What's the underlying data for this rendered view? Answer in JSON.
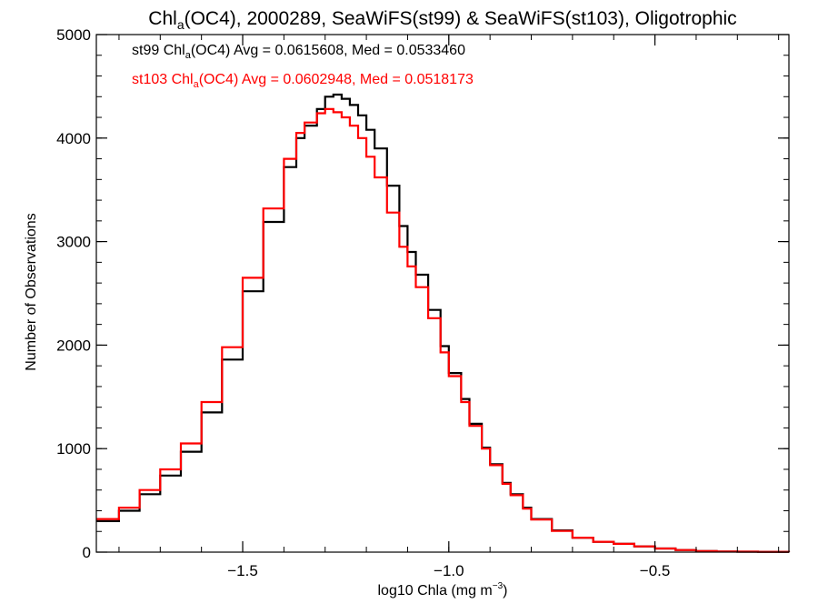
{
  "chart_data": {
    "type": "line",
    "title_prefix": "Chl",
    "title_sub": "a",
    "title_suffix": "(OC4), 2000289, SeaWiFS(st99) & SeaWiFS(st103), Oligotrophic",
    "xlabel_prefix": "log10 Chla (mg m",
    "xlabel_sup": "−3",
    "xlabel_suffix": ")",
    "ylabel": "Number of Observations",
    "xlim": [
      -1.855,
      -0.175
    ],
    "ylim": [
      0,
      5000
    ],
    "x_ticks": [
      -1.5,
      -1.0,
      -0.5
    ],
    "x_tick_labels": [
      "−1.5",
      "−1.0",
      "−0.5"
    ],
    "x_minor_step": 0.1,
    "y_ticks": [
      0,
      1000,
      2000,
      3000,
      4000,
      5000
    ],
    "y_tick_labels": [
      "0",
      "1000",
      "2000",
      "3000",
      "4000",
      "5000"
    ],
    "y_minor_step": 200,
    "grid": false,
    "legend_position": "top-left",
    "series": [
      {
        "label_parts": [
          "st99 Chl",
          "a",
          "(OC4) Avg = 0.0615608, Med = 0.0533460"
        ],
        "color": "#000000",
        "step": "post",
        "x": [
          -1.855,
          -1.8,
          -1.75,
          -1.7,
          -1.65,
          -1.6,
          -1.55,
          -1.5,
          -1.45,
          -1.4,
          -1.37,
          -1.35,
          -1.32,
          -1.3,
          -1.28,
          -1.26,
          -1.24,
          -1.22,
          -1.2,
          -1.18,
          -1.15,
          -1.12,
          -1.1,
          -1.08,
          -1.05,
          -1.02,
          -1.0,
          -0.97,
          -0.95,
          -0.92,
          -0.9,
          -0.87,
          -0.85,
          -0.82,
          -0.8,
          -0.75,
          -0.7,
          -0.65,
          -0.6,
          -0.55,
          -0.5,
          -0.45,
          -0.4,
          -0.35,
          -0.3,
          -0.25,
          -0.175
        ],
        "y": [
          300,
          400,
          560,
          740,
          970,
          1350,
          1860,
          2520,
          3190,
          3720,
          4000,
          4120,
          4280,
          4400,
          4420,
          4380,
          4320,
          4220,
          4080,
          3900,
          3540,
          3150,
          2900,
          2680,
          2340,
          1990,
          1730,
          1480,
          1240,
          1010,
          850,
          670,
          560,
          430,
          320,
          210,
          140,
          100,
          80,
          55,
          35,
          20,
          10,
          6,
          4,
          3,
          2
        ]
      },
      {
        "label_parts": [
          "st103 Chl",
          "a",
          "(OC4) Avg = 0.0602948, Med = 0.0518173"
        ],
        "color": "#ff0000",
        "step": "post",
        "x": [
          -1.855,
          -1.8,
          -1.75,
          -1.7,
          -1.65,
          -1.6,
          -1.55,
          -1.5,
          -1.45,
          -1.4,
          -1.37,
          -1.35,
          -1.32,
          -1.3,
          -1.28,
          -1.26,
          -1.24,
          -1.22,
          -1.2,
          -1.18,
          -1.15,
          -1.12,
          -1.1,
          -1.08,
          -1.05,
          -1.02,
          -1.0,
          -0.97,
          -0.95,
          -0.92,
          -0.9,
          -0.87,
          -0.85,
          -0.82,
          -0.8,
          -0.75,
          -0.7,
          -0.65,
          -0.6,
          -0.55,
          -0.5,
          -0.45,
          -0.4,
          -0.35,
          -0.3,
          -0.25,
          -0.175
        ],
        "y": [
          320,
          430,
          600,
          800,
          1050,
          1450,
          1980,
          2650,
          3320,
          3800,
          4050,
          4150,
          4240,
          4280,
          4250,
          4200,
          4120,
          4000,
          3820,
          3620,
          3280,
          2950,
          2760,
          2560,
          2260,
          1930,
          1700,
          1450,
          1220,
          1000,
          840,
          660,
          550,
          420,
          315,
          205,
          140,
          100,
          80,
          55,
          35,
          20,
          10,
          6,
          4,
          3,
          2
        ]
      }
    ]
  }
}
